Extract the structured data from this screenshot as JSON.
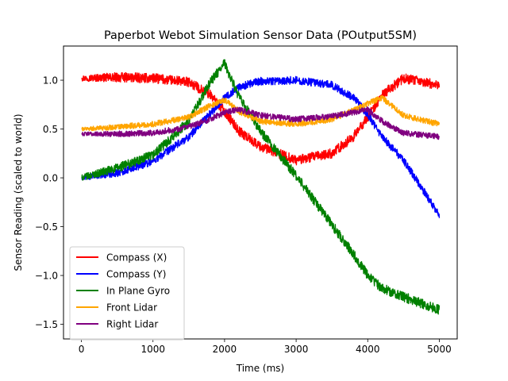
{
  "chart_data": {
    "type": "line",
    "title": "Paperbot Webot Simulation Sensor Data (POutput5SM)",
    "xlabel": "Time (ms)",
    "ylabel": "Sensor Reading (scaled to world)",
    "xlim": [
      -250,
      5250
    ],
    "ylim": [
      -1.65,
      1.35
    ],
    "x_ticks": [
      0,
      1000,
      2000,
      3000,
      4000,
      5000
    ],
    "x_tick_labels": [
      "0",
      "1000",
      "2000",
      "3000",
      "4000",
      "5000"
    ],
    "y_ticks": [
      -1.5,
      -1.0,
      -0.5,
      0.0,
      0.5,
      1.0
    ],
    "y_tick_labels": [
      "−1.5",
      "−1.0",
      "−0.5",
      "0.0",
      "0.5",
      "1.0"
    ],
    "grid": false,
    "legend_position": "lower-left",
    "x": [
      0,
      500,
      1000,
      1500,
      1800,
      2000,
      2200,
      2500,
      3000,
      3500,
      3800,
      4000,
      4200,
      4500,
      5000
    ],
    "series": [
      {
        "name": "Compass (X)",
        "color": "#ff0000",
        "noise": 0.05,
        "values": [
          1.02,
          1.03,
          1.02,
          0.98,
          0.85,
          0.68,
          0.48,
          0.32,
          0.18,
          0.25,
          0.42,
          0.62,
          0.85,
          1.02,
          0.95
        ]
      },
      {
        "name": "Compass (Y)",
        "color": "#0000ff",
        "noise": 0.04,
        "values": [
          0.0,
          0.05,
          0.17,
          0.42,
          0.66,
          0.82,
          0.93,
          0.99,
          1.0,
          0.95,
          0.82,
          0.65,
          0.42,
          0.18,
          -0.38
        ]
      },
      {
        "name": "In Plane Gyro",
        "color": "#008000",
        "noise": 0.05,
        "values": [
          0.0,
          0.1,
          0.23,
          0.58,
          0.98,
          1.17,
          0.83,
          0.48,
          0.02,
          -0.48,
          -0.78,
          -1.0,
          -1.13,
          -1.22,
          -1.35
        ]
      },
      {
        "name": "Front Lidar",
        "color": "#ffa500",
        "noise": 0.03,
        "values": [
          0.5,
          0.52,
          0.55,
          0.62,
          0.74,
          0.8,
          0.68,
          0.58,
          0.55,
          0.6,
          0.69,
          0.76,
          0.82,
          0.64,
          0.55
        ]
      },
      {
        "name": "Right Lidar",
        "color": "#800080",
        "noise": 0.03,
        "values": [
          0.45,
          0.45,
          0.46,
          0.52,
          0.6,
          0.67,
          0.7,
          0.64,
          0.6,
          0.63,
          0.67,
          0.7,
          0.58,
          0.46,
          0.42
        ]
      }
    ]
  }
}
